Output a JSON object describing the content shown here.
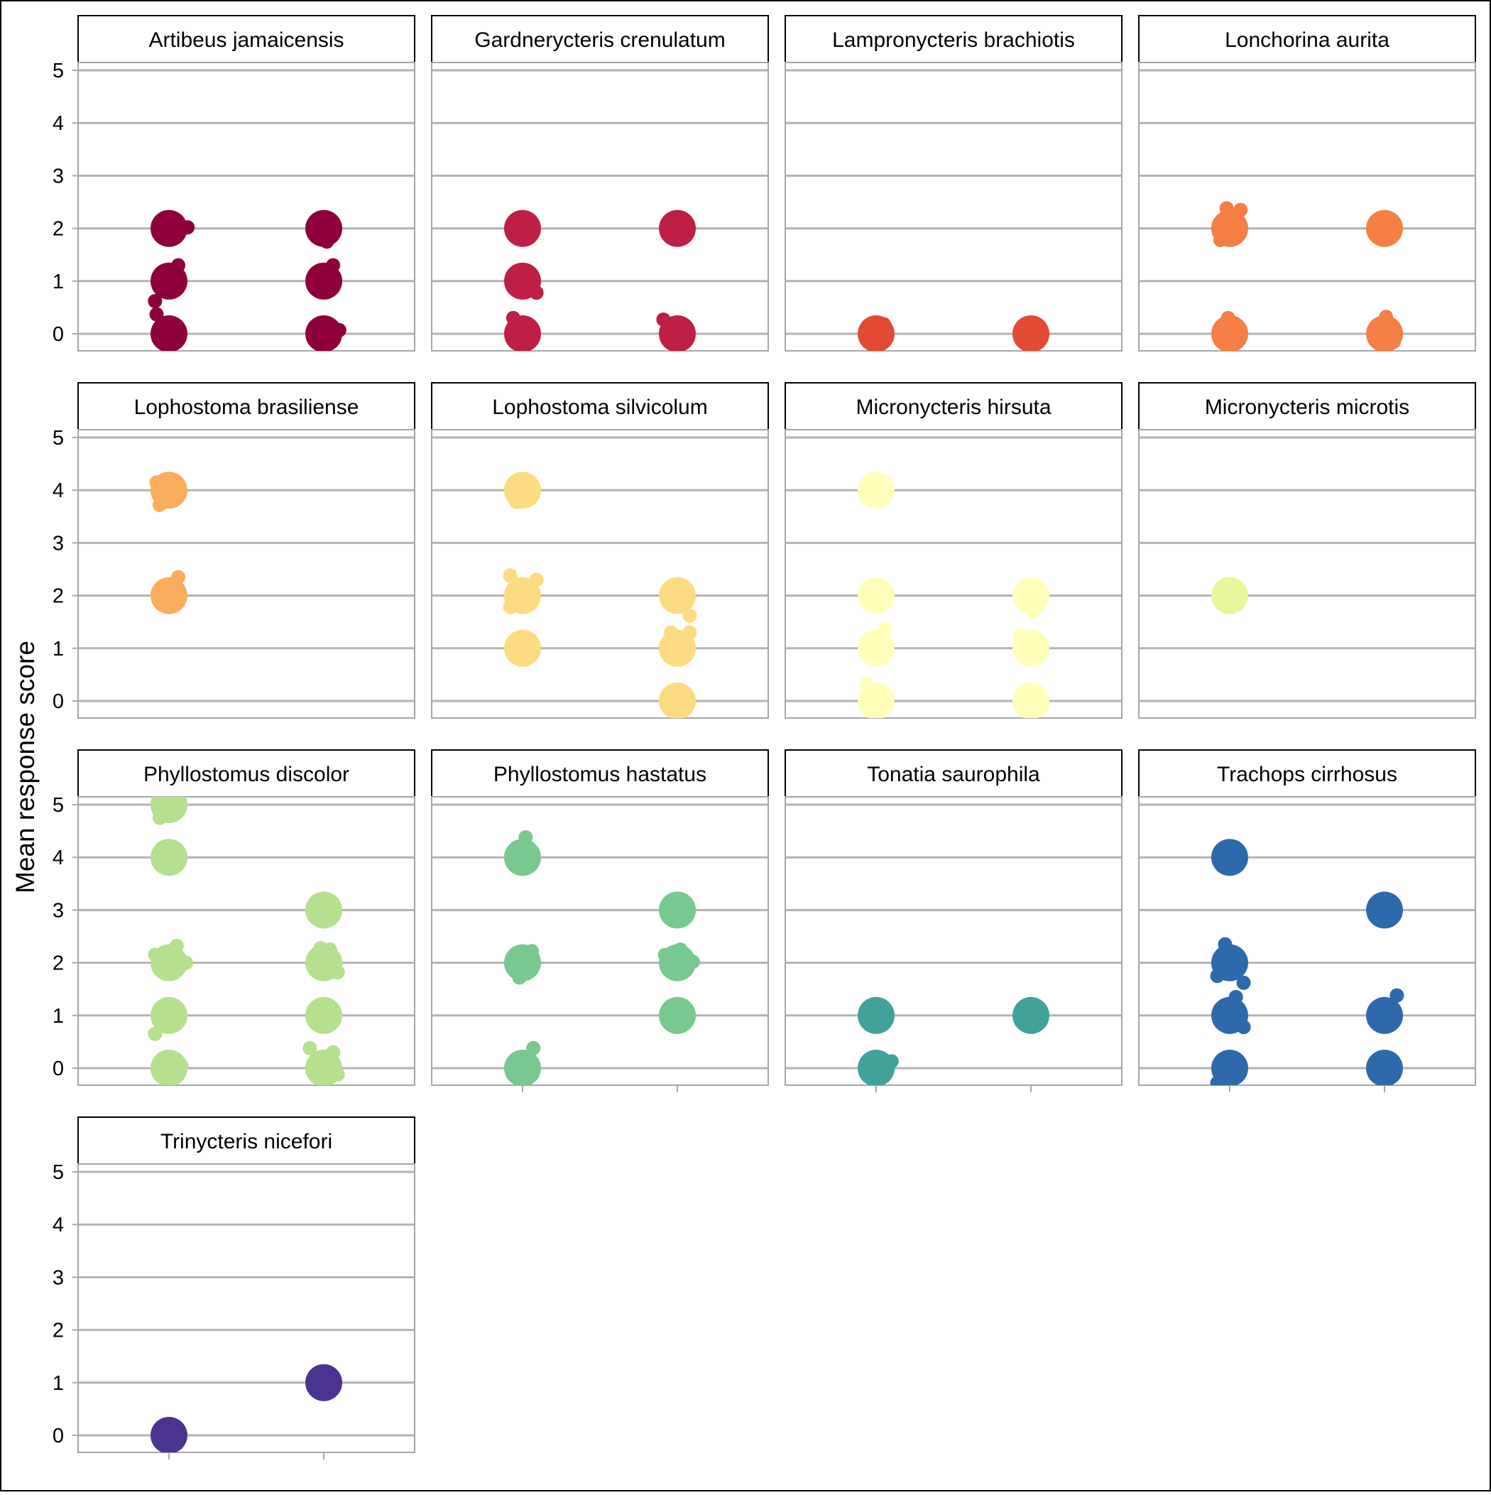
{
  "chart_data": {
    "type": "scatter",
    "ylabel": "Mean response score",
    "xlabel": "",
    "ylim": [
      -0.2,
      5.5
    ],
    "y_ticks": [
      0,
      1,
      2,
      3,
      4,
      5
    ],
    "x_groups": 2,
    "grid": "horizontal",
    "panels": [
      {
        "name": "Artibeus jamaicensis",
        "color": "#8E0039",
        "points": [
          {
            "group": 1,
            "y": 2,
            "size": "large"
          },
          {
            "group": 1,
            "y": 1,
            "size": "large"
          },
          {
            "group": 1,
            "y": 0,
            "size": "large"
          },
          {
            "group": 1,
            "y": 2.02,
            "size": "small",
            "dx": 0.12
          },
          {
            "group": 1,
            "y": 1.3,
            "size": "small",
            "dx": 0.06
          },
          {
            "group": 1,
            "y": 0.85,
            "size": "small",
            "dx": 0.03
          },
          {
            "group": 1,
            "y": 0.62,
            "size": "small",
            "dx": -0.09
          },
          {
            "group": 1,
            "y": 0.37,
            "size": "small",
            "dx": -0.08
          },
          {
            "group": 2,
            "y": 2,
            "size": "large"
          },
          {
            "group": 2,
            "y": 1,
            "size": "large"
          },
          {
            "group": 2,
            "y": 0,
            "size": "large"
          },
          {
            "group": 2,
            "y": 1.75,
            "size": "small",
            "dx": 0.02
          },
          {
            "group": 2,
            "y": 1.3,
            "size": "small",
            "dx": 0.06
          },
          {
            "group": 2,
            "y": 0.8,
            "size": "small",
            "dx": -0.01
          },
          {
            "group": 2,
            "y": 0.07,
            "size": "small",
            "dx": 0.1
          },
          {
            "group": 2,
            "y": -0.1,
            "size": "small",
            "dx": -0.03
          }
        ]
      },
      {
        "name": "Gardnerycteris crenulatum",
        "color": "#BF1E45",
        "points": [
          {
            "group": 1,
            "y": 2,
            "size": "large"
          },
          {
            "group": 1,
            "y": 1,
            "size": "large"
          },
          {
            "group": 1,
            "y": 0,
            "size": "large"
          },
          {
            "group": 1,
            "y": 0.78,
            "size": "small",
            "dx": 0.09
          },
          {
            "group": 1,
            "y": 0.3,
            "size": "small",
            "dx": -0.06
          },
          {
            "group": 2,
            "y": 2,
            "size": "large"
          },
          {
            "group": 2,
            "y": 0,
            "size": "large"
          },
          {
            "group": 2,
            "y": 2.15,
            "size": "small",
            "dx": -0.04
          },
          {
            "group": 2,
            "y": 0.27,
            "size": "small",
            "dx": -0.09
          }
        ]
      },
      {
        "name": "Lampronycteris brachiotis",
        "color": "#E34A33",
        "points": [
          {
            "group": 1,
            "y": 0,
            "size": "large"
          },
          {
            "group": 1,
            "y": 0.18,
            "size": "small",
            "dx": 0.05
          },
          {
            "group": 2,
            "y": 0,
            "size": "large"
          }
        ]
      },
      {
        "name": "Lonchorina aurita",
        "color": "#F47E44",
        "points": [
          {
            "group": 1,
            "y": 2,
            "size": "large"
          },
          {
            "group": 1,
            "y": 2.38,
            "size": "small",
            "dx": -0.02
          },
          {
            "group": 1,
            "y": 2.35,
            "size": "small",
            "dx": 0.07
          },
          {
            "group": 1,
            "y": 1.78,
            "size": "small",
            "dx": -0.06
          },
          {
            "group": 1,
            "y": 0,
            "size": "large"
          },
          {
            "group": 1,
            "y": 0.3,
            "size": "small",
            "dx": -0.01
          },
          {
            "group": 2,
            "y": 2,
            "size": "large"
          },
          {
            "group": 2,
            "y": 0,
            "size": "large"
          },
          {
            "group": 2,
            "y": 0.32,
            "size": "small",
            "dx": 0.01
          },
          {
            "group": 2,
            "y": -0.15,
            "size": "small",
            "dx": 0.06
          }
        ]
      },
      {
        "name": "Lophostoma brasiliense",
        "color": "#FBAD5E",
        "points": [
          {
            "group": 1,
            "y": 4,
            "size": "large"
          },
          {
            "group": 1,
            "y": 4.15,
            "size": "small",
            "dx": -0.08
          },
          {
            "group": 1,
            "y": 3.72,
            "size": "small",
            "dx": -0.06
          },
          {
            "group": 1,
            "y": 2,
            "size": "large"
          },
          {
            "group": 1,
            "y": 2.35,
            "size": "small",
            "dx": 0.06
          }
        ]
      },
      {
        "name": "Lophostoma silvicolum",
        "color": "#FDDB82",
        "points": [
          {
            "group": 1,
            "y": 4,
            "size": "large"
          },
          {
            "group": 1,
            "y": 3.78,
            "size": "small",
            "dx": -0.04
          },
          {
            "group": 1,
            "y": 2,
            "size": "large"
          },
          {
            "group": 1,
            "y": 2.38,
            "size": "small",
            "dx": -0.08
          },
          {
            "group": 1,
            "y": 2.3,
            "size": "small",
            "dx": 0.09
          },
          {
            "group": 1,
            "y": 2.2,
            "size": "small",
            "dx": 0.02
          },
          {
            "group": 1,
            "y": 1.78,
            "size": "small",
            "dx": -0.08
          },
          {
            "group": 1,
            "y": 1,
            "size": "large"
          },
          {
            "group": 2,
            "y": 2,
            "size": "large"
          },
          {
            "group": 2,
            "y": 1.62,
            "size": "small",
            "dx": 0.08
          },
          {
            "group": 2,
            "y": 1,
            "size": "large"
          },
          {
            "group": 2,
            "y": 1.3,
            "size": "small",
            "dx": -0.04
          },
          {
            "group": 2,
            "y": 1.3,
            "size": "small",
            "dx": 0.08
          },
          {
            "group": 2,
            "y": 0,
            "size": "large"
          }
        ]
      },
      {
        "name": "Micronycteris hirsuta",
        "color": "#FFFFB9",
        "points": [
          {
            "group": 1,
            "y": 4,
            "size": "large"
          },
          {
            "group": 1,
            "y": 2,
            "size": "large"
          },
          {
            "group": 1,
            "y": 1,
            "size": "large"
          },
          {
            "group": 1,
            "y": 1.38,
            "size": "small",
            "dx": 0.06
          },
          {
            "group": 1,
            "y": 0,
            "size": "large"
          },
          {
            "group": 1,
            "y": 0.33,
            "size": "small",
            "dx": -0.06
          },
          {
            "group": 2,
            "y": 2,
            "size": "large"
          },
          {
            "group": 2,
            "y": 1.7,
            "size": "small",
            "dx": 0.01
          },
          {
            "group": 2,
            "y": 1,
            "size": "large"
          },
          {
            "group": 2,
            "y": 1.25,
            "size": "small",
            "dx": -0.07
          },
          {
            "group": 2,
            "y": 0,
            "size": "large"
          }
        ]
      },
      {
        "name": "Micronycteris microtis",
        "color": "#E8F59A",
        "points": [
          {
            "group": 1,
            "y": 2,
            "size": "large"
          }
        ]
      },
      {
        "name": "Phyllostomus discolor",
        "color": "#B5E08E",
        "points": [
          {
            "group": 1,
            "y": 5,
            "size": "large"
          },
          {
            "group": 1,
            "y": 4.75,
            "size": "small",
            "dx": -0.06
          },
          {
            "group": 1,
            "y": 4,
            "size": "large"
          },
          {
            "group": 1,
            "y": 2,
            "size": "large"
          },
          {
            "group": 1,
            "y": 2.32,
            "size": "small",
            "dx": 0.05
          },
          {
            "group": 1,
            "y": 2.15,
            "size": "small",
            "dx": -0.09
          },
          {
            "group": 1,
            "y": 2.0,
            "size": "small",
            "dx": 0.11
          },
          {
            "group": 1,
            "y": 1,
            "size": "large"
          },
          {
            "group": 1,
            "y": 0.65,
            "size": "small",
            "dx": -0.09
          },
          {
            "group": 1,
            "y": 0,
            "size": "large"
          },
          {
            "group": 1,
            "y": 0.05,
            "size": "small",
            "dx": 0.08
          },
          {
            "group": 2,
            "y": 3,
            "size": "large"
          },
          {
            "group": 2,
            "y": 2,
            "size": "large"
          },
          {
            "group": 2,
            "y": 2.28,
            "size": "small",
            "dx": -0.02
          },
          {
            "group": 2,
            "y": 2.25,
            "size": "small",
            "dx": 0.04
          },
          {
            "group": 2,
            "y": 1.82,
            "size": "small",
            "dx": 0.09
          },
          {
            "group": 2,
            "y": 1,
            "size": "large"
          },
          {
            "group": 2,
            "y": 0,
            "size": "large"
          },
          {
            "group": 2,
            "y": 0.38,
            "size": "small",
            "dx": -0.09
          },
          {
            "group": 2,
            "y": 0.3,
            "size": "small",
            "dx": 0.06
          },
          {
            "group": 2,
            "y": -0.12,
            "size": "small",
            "dx": 0.09
          }
        ]
      },
      {
        "name": "Phyllostomus hastatus",
        "color": "#78C98F",
        "points": [
          {
            "group": 1,
            "y": 4,
            "size": "large"
          },
          {
            "group": 1,
            "y": 4.38,
            "size": "small",
            "dx": 0.02
          },
          {
            "group": 1,
            "y": 2,
            "size": "large"
          },
          {
            "group": 1,
            "y": 2.22,
            "size": "small",
            "dx": 0.06
          },
          {
            "group": 1,
            "y": 1.72,
            "size": "small",
            "dx": -0.02
          },
          {
            "group": 1,
            "y": 0,
            "size": "large"
          },
          {
            "group": 1,
            "y": 0.38,
            "size": "small",
            "dx": 0.07
          },
          {
            "group": 2,
            "y": 3,
            "size": "large"
          },
          {
            "group": 2,
            "y": 2,
            "size": "large"
          },
          {
            "group": 2,
            "y": 2.25,
            "size": "small",
            "dx": 0.02
          },
          {
            "group": 2,
            "y": 2.15,
            "size": "small",
            "dx": -0.08
          },
          {
            "group": 2,
            "y": 2.02,
            "size": "small",
            "dx": 0.1
          },
          {
            "group": 2,
            "y": 1,
            "size": "large"
          }
        ]
      },
      {
        "name": "Tonatia saurophila",
        "color": "#41A29B",
        "points": [
          {
            "group": 1,
            "y": 1,
            "size": "large"
          },
          {
            "group": 1,
            "y": 0,
            "size": "large"
          },
          {
            "group": 1,
            "y": 0.13,
            "size": "small",
            "dx": 0.1
          },
          {
            "group": 2,
            "y": 1,
            "size": "large"
          }
        ]
      },
      {
        "name": "Trachops cirrhosus",
        "color": "#2D6AAC",
        "points": [
          {
            "group": 1,
            "y": 4,
            "size": "large"
          },
          {
            "group": 1,
            "y": 2,
            "size": "large"
          },
          {
            "group": 1,
            "y": 2.35,
            "size": "small",
            "dx": -0.03
          },
          {
            "group": 1,
            "y": 1.75,
            "size": "small",
            "dx": -0.08
          },
          {
            "group": 1,
            "y": 1.62,
            "size": "small",
            "dx": 0.09
          },
          {
            "group": 1,
            "y": 1,
            "size": "large"
          },
          {
            "group": 1,
            "y": 1.35,
            "size": "small",
            "dx": 0.04
          },
          {
            "group": 1,
            "y": 0.78,
            "size": "small",
            "dx": 0.09
          },
          {
            "group": 1,
            "y": 0,
            "size": "large"
          },
          {
            "group": 1,
            "y": -0.28,
            "size": "small",
            "dx": -0.08
          },
          {
            "group": 2,
            "y": 3,
            "size": "large"
          },
          {
            "group": 2,
            "y": 1,
            "size": "large"
          },
          {
            "group": 2,
            "y": 1.38,
            "size": "small",
            "dx": 0.08
          },
          {
            "group": 2,
            "y": 0,
            "size": "large"
          }
        ]
      },
      {
        "name": "Trinycteris nicefori",
        "color": "#4A3490",
        "points": [
          {
            "group": 1,
            "y": 0,
            "size": "large"
          },
          {
            "group": 2,
            "y": 1,
            "size": "large"
          }
        ]
      }
    ]
  }
}
